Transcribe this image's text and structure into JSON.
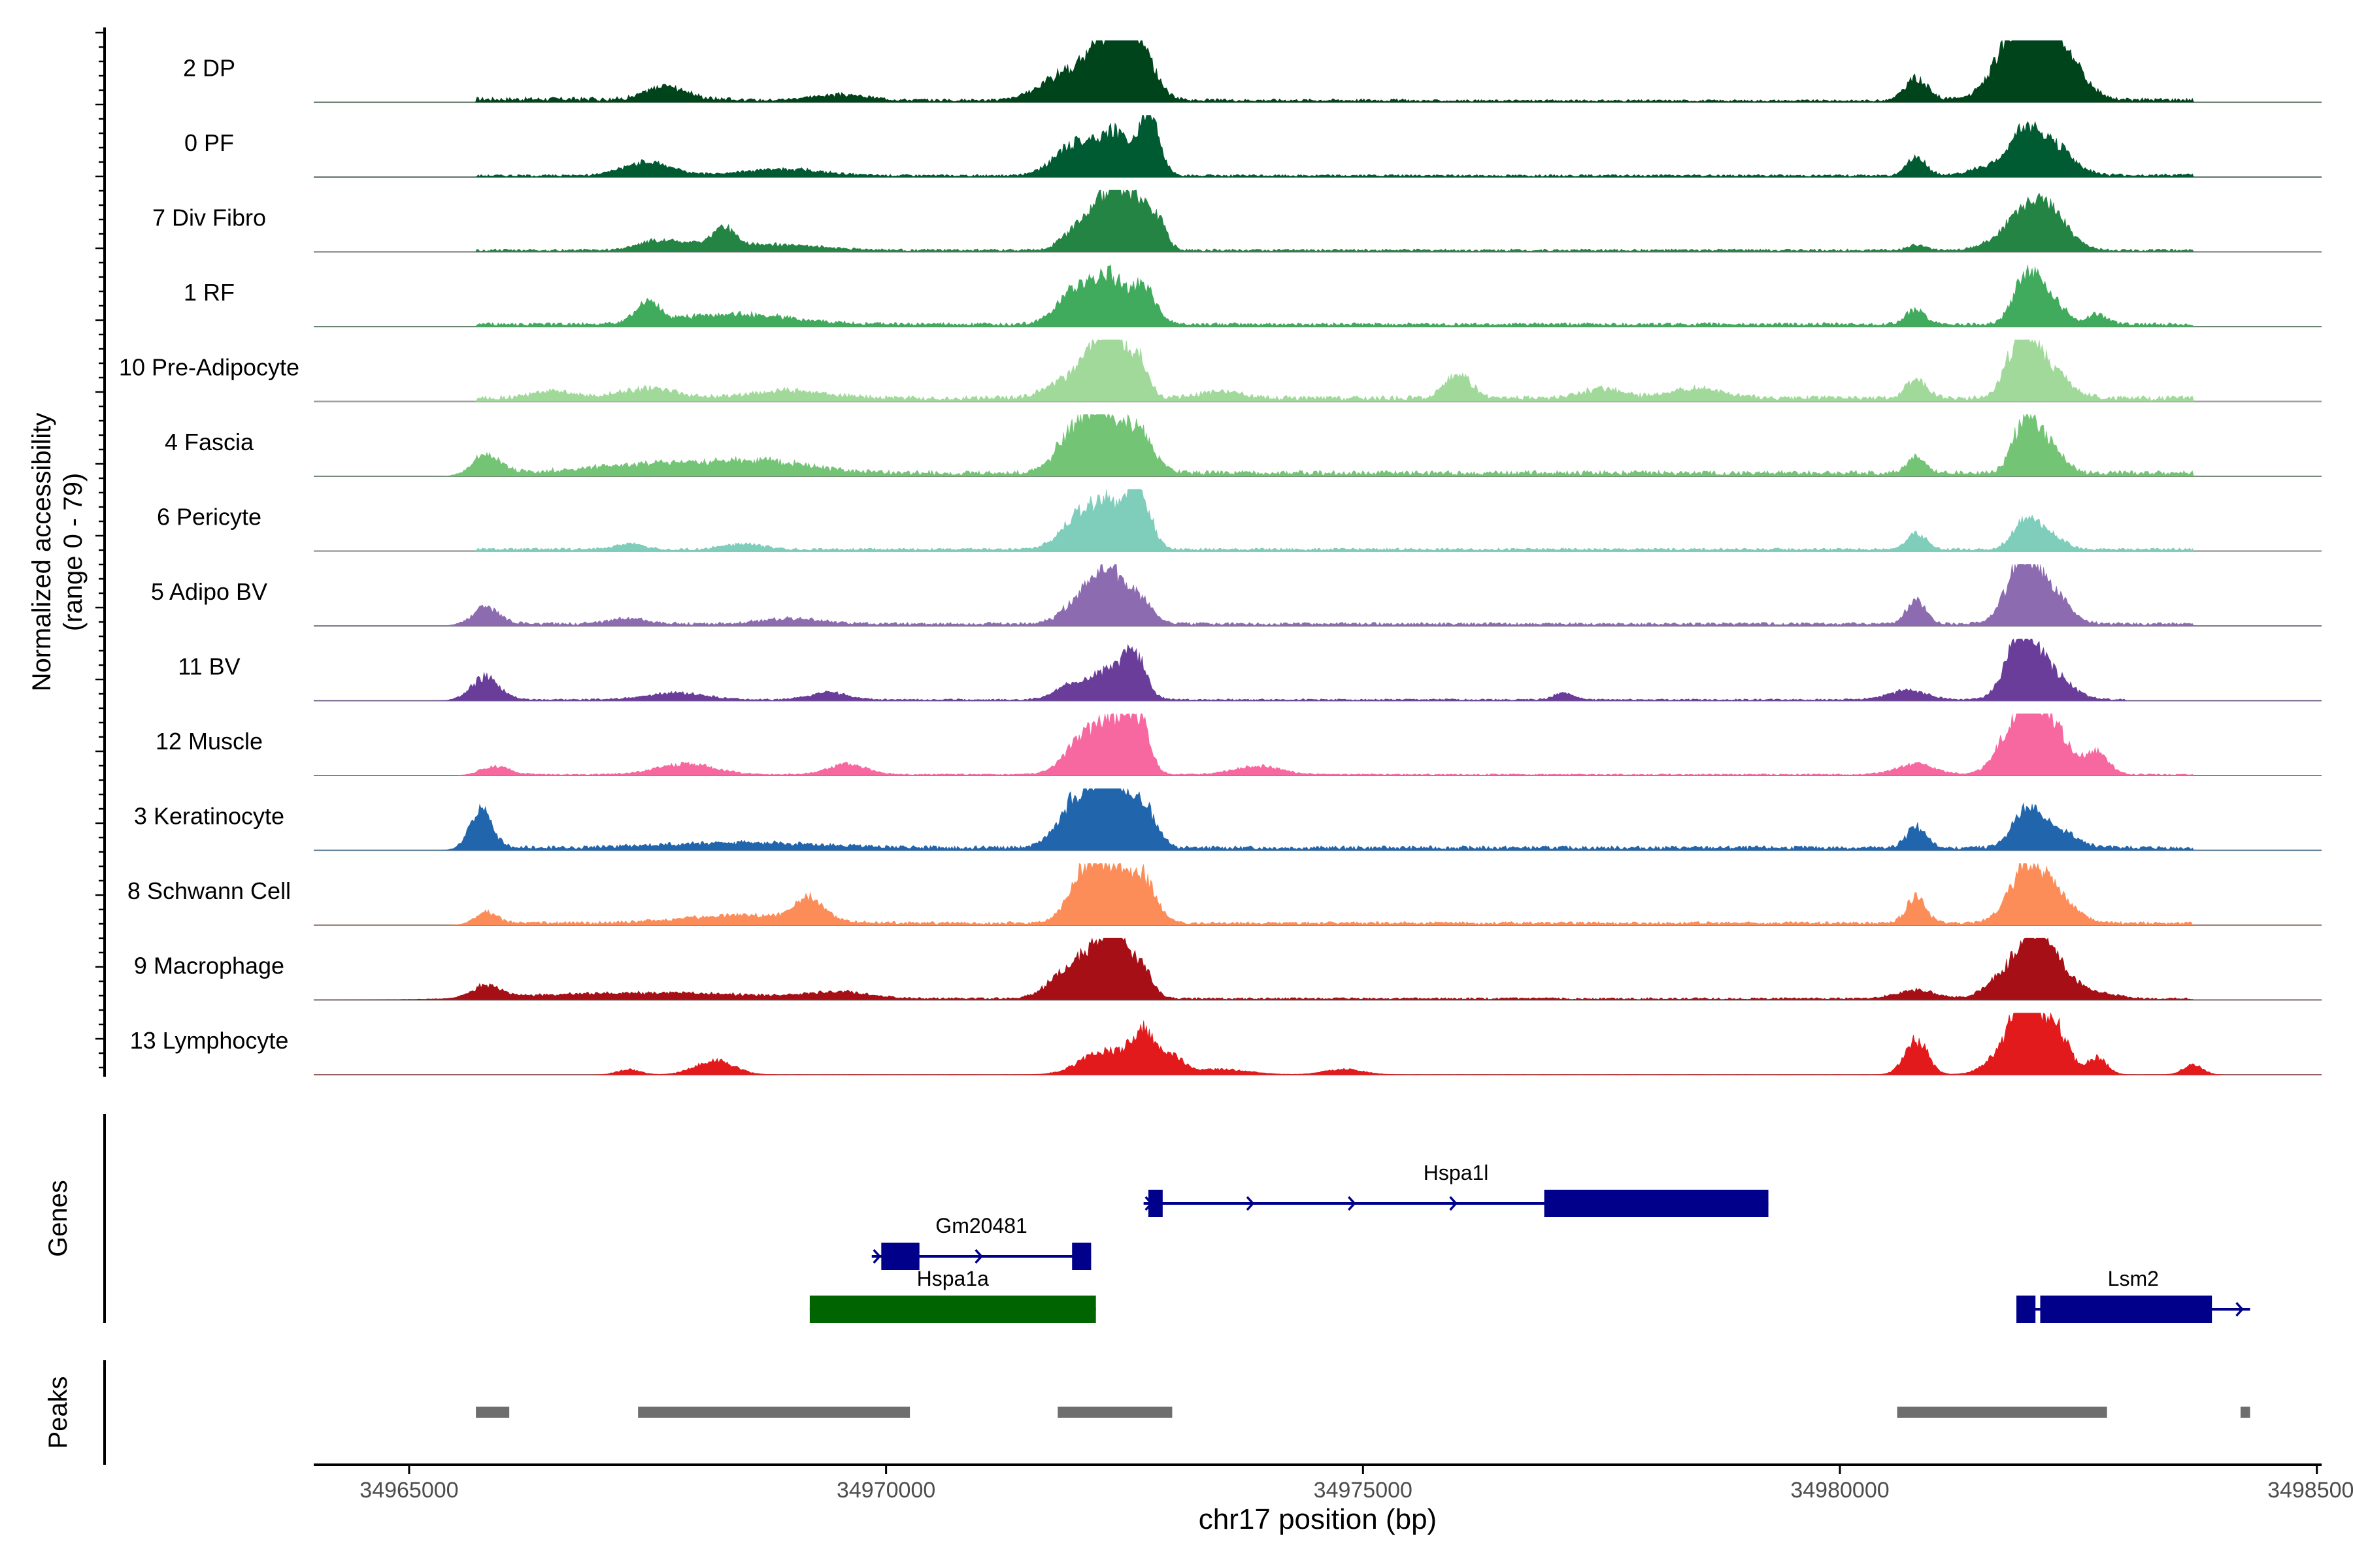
{
  "chart_data": {
    "type": "area",
    "title": "",
    "ylabel_line1": "Normalized accessibility",
    "ylabel_line2": "(range 0 - 79)",
    "xlabel": "chr17 position (bp)",
    "xlim": [
      34964000,
      34985050
    ],
    "xticks": [
      34965000,
      34970000,
      34975000,
      34980000,
      34985000
    ],
    "xtick_labels": [
      "34965000",
      "34970000",
      "34975000",
      "34980000",
      "34985000"
    ],
    "yrange": [
      0,
      79
    ],
    "panel_labels": {
      "genes": "Genes",
      "peaks": "Peaks"
    },
    "series": [
      {
        "name": "2 DP",
        "color": "#00441b",
        "max": 22,
        "background": [
          [
            34965700,
            34968400,
            1.2
          ],
          [
            34968400,
            34975500,
            0.8
          ],
          [
            34975500,
            34980700,
            0.6
          ],
          [
            34980700,
            34983700,
            1.0
          ]
        ],
        "peaks": [
          [
            34967700,
            200,
            5
          ],
          [
            34969500,
            300,
            2
          ],
          [
            34971900,
            260,
            10
          ],
          [
            34972300,
            180,
            16
          ],
          [
            34972500,
            160,
            14
          ],
          [
            34972700,
            150,
            13
          ],
          [
            34980800,
            120,
            8
          ],
          [
            34981900,
            240,
            22
          ],
          [
            34982100,
            250,
            16
          ],
          [
            34982400,
            200,
            8
          ]
        ]
      },
      {
        "name": "0 PF",
        "color": "#005a32",
        "max": 26,
        "background": [
          [
            34965700,
            34980700,
            0.7
          ],
          [
            34980700,
            34983700,
            0.9
          ]
        ],
        "peaks": [
          [
            34967500,
            250,
            6
          ],
          [
            34968900,
            400,
            3
          ],
          [
            34972000,
            220,
            14
          ],
          [
            34972400,
            150,
            17
          ],
          [
            34972750,
            110,
            26
          ],
          [
            34980800,
            100,
            8
          ],
          [
            34981600,
            200,
            4
          ],
          [
            34981950,
            160,
            17
          ],
          [
            34982250,
            200,
            12
          ]
        ]
      },
      {
        "name": "7 Div Fibro",
        "color": "#238443",
        "max": 40,
        "background": [
          [
            34965700,
            34983700,
            1.2
          ]
        ],
        "peaks": [
          [
            34967600,
            200,
            6
          ],
          [
            34968000,
            200,
            3
          ],
          [
            34968300,
            120,
            12
          ],
          [
            34968800,
            500,
            4
          ],
          [
            34972000,
            150,
            15
          ],
          [
            34972250,
            110,
            28
          ],
          [
            34972450,
            100,
            36
          ],
          [
            34972650,
            100,
            31
          ],
          [
            34972850,
            90,
            20
          ],
          [
            34980800,
            100,
            3
          ],
          [
            34981950,
            250,
            22
          ],
          [
            34982200,
            200,
            18
          ]
        ]
      },
      {
        "name": "1 RF",
        "color": "#41ab5d",
        "max": 24,
        "background": [
          [
            34965700,
            34983700,
            1.0
          ]
        ],
        "peaks": [
          [
            34967500,
            120,
            8
          ],
          [
            34968400,
            600,
            4
          ],
          [
            34972000,
            200,
            14
          ],
          [
            34972350,
            150,
            17
          ],
          [
            34972700,
            130,
            15
          ],
          [
            34980800,
            100,
            6
          ],
          [
            34981950,
            130,
            20
          ],
          [
            34982200,
            150,
            10
          ],
          [
            34982700,
            100,
            4
          ]
        ]
      },
      {
        "name": "10 Pre-Adipocyte",
        "color": "#a1d99b",
        "max": 25,
        "background": [
          [
            34965700,
            34983700,
            1.5
          ]
        ],
        "peaks": [
          [
            34966500,
            200,
            3
          ],
          [
            34967500,
            300,
            4
          ],
          [
            34969000,
            400,
            3
          ],
          [
            34971900,
            200,
            8
          ],
          [
            34972200,
            140,
            18
          ],
          [
            34972400,
            110,
            24
          ],
          [
            34972650,
            100,
            16
          ],
          [
            34973500,
            200,
            3
          ],
          [
            34976000,
            130,
            10
          ],
          [
            34977500,
            200,
            4
          ],
          [
            34978500,
            300,
            4
          ],
          [
            34980800,
            110,
            8
          ],
          [
            34981900,
            150,
            24
          ],
          [
            34982200,
            200,
            12
          ]
        ]
      },
      {
        "name": "4 Fascia",
        "color": "#74c476",
        "max": 20,
        "background": [
          [
            34965700,
            34983700,
            1.2
          ]
        ],
        "peaks": [
          [
            34965800,
            150,
            6
          ],
          [
            34967500,
            600,
            3
          ],
          [
            34968700,
            500,
            4
          ],
          [
            34972000,
            200,
            14
          ],
          [
            34972300,
            180,
            16
          ],
          [
            34972650,
            150,
            13
          ],
          [
            34980800,
            100,
            5
          ],
          [
            34981950,
            130,
            18
          ],
          [
            34982200,
            150,
            8
          ]
        ]
      },
      {
        "name": "6 Pericyte",
        "color": "#7fcdbb",
        "max": 32,
        "background": [
          [
            34965700,
            34983700,
            1.0
          ]
        ],
        "peaks": [
          [
            34967300,
            150,
            3
          ],
          [
            34968500,
            200,
            3
          ],
          [
            34972050,
            200,
            18
          ],
          [
            34972350,
            160,
            20
          ],
          [
            34972650,
            120,
            32
          ],
          [
            34980800,
            100,
            9
          ],
          [
            34981950,
            130,
            16
          ],
          [
            34982200,
            150,
            7
          ]
        ]
      },
      {
        "name": "5 Adipo BV",
        "color": "#8c6bb1",
        "max": 22,
        "background": [
          [
            34965700,
            34983700,
            0.8
          ]
        ],
        "peaks": [
          [
            34965800,
            150,
            6
          ],
          [
            34967300,
            200,
            2
          ],
          [
            34969000,
            300,
            2
          ],
          [
            34972100,
            200,
            11
          ],
          [
            34972350,
            150,
            16
          ],
          [
            34972650,
            130,
            9
          ],
          [
            34980800,
            100,
            9
          ],
          [
            34981900,
            160,
            22
          ],
          [
            34982200,
            180,
            12
          ]
        ]
      },
      {
        "name": "11 BV",
        "color": "#6a3d9a",
        "max": 26,
        "background": [
          [
            34965700,
            34983000,
            0.5
          ]
        ],
        "peaks": [
          [
            34965800,
            150,
            10
          ],
          [
            34967800,
            300,
            3
          ],
          [
            34969400,
            200,
            3
          ],
          [
            34971900,
            150,
            5
          ],
          [
            34972300,
            200,
            12
          ],
          [
            34972600,
            120,
            18
          ],
          [
            34977100,
            100,
            3
          ],
          [
            34980700,
            200,
            4
          ],
          [
            34981900,
            160,
            26
          ],
          [
            34982200,
            200,
            12
          ]
        ]
      },
      {
        "name": "12 Muscle",
        "color": "#f768a1",
        "max": 22,
        "background": [
          [
            34965700,
            34983700,
            0.4
          ]
        ],
        "peaks": [
          [
            34965900,
            150,
            3
          ],
          [
            34967900,
            300,
            4
          ],
          [
            34969600,
            200,
            4
          ],
          [
            34972100,
            200,
            14
          ],
          [
            34972400,
            150,
            16
          ],
          [
            34972650,
            110,
            19
          ],
          [
            34973900,
            250,
            3
          ],
          [
            34980800,
            200,
            4
          ],
          [
            34981900,
            200,
            21
          ],
          [
            34982200,
            200,
            16
          ],
          [
            34982700,
            120,
            8
          ]
        ]
      },
      {
        "name": "3 Keratinocyte",
        "color": "#2166ac",
        "max": 22,
        "background": [
          [
            34965700,
            34983700,
            1.0
          ]
        ],
        "peaks": [
          [
            34965750,
            120,
            14
          ],
          [
            34968500,
            800,
            2
          ],
          [
            34972100,
            230,
            22
          ],
          [
            34972400,
            150,
            17
          ],
          [
            34972700,
            130,
            15
          ],
          [
            34980800,
            100,
            8
          ],
          [
            34981950,
            140,
            13
          ],
          [
            34982250,
            200,
            7
          ]
        ]
      },
      {
        "name": "8 Schwann Cell",
        "color": "#fc8d59",
        "max": 22,
        "background": [
          [
            34965700,
            34983700,
            0.8
          ]
        ],
        "peaks": [
          [
            34965800,
            120,
            4
          ],
          [
            34968500,
            600,
            3
          ],
          [
            34969200,
            150,
            8
          ],
          [
            34972100,
            170,
            20
          ],
          [
            34972400,
            150,
            17
          ],
          [
            34972700,
            130,
            16
          ],
          [
            34980800,
            100,
            10
          ],
          [
            34981950,
            180,
            19
          ],
          [
            34982250,
            200,
            10
          ]
        ]
      },
      {
        "name": "9 Macrophage",
        "color": "#a50f15",
        "max": 42,
        "background": [
          [
            34965700,
            34983700,
            1.0
          ]
        ],
        "peaks": [
          [
            34965800,
            150,
            8
          ],
          [
            34967500,
            1200,
            4
          ],
          [
            34969500,
            300,
            4
          ],
          [
            34971900,
            200,
            18
          ],
          [
            34972200,
            150,
            28
          ],
          [
            34972400,
            100,
            42
          ],
          [
            34972650,
            120,
            25
          ],
          [
            34980800,
            200,
            6
          ],
          [
            34981800,
            200,
            22
          ],
          [
            34982050,
            140,
            36
          ],
          [
            34982300,
            160,
            20
          ],
          [
            34982700,
            200,
            4
          ]
        ]
      },
      {
        "name": "13 Lymphocyte",
        "color": "#e31a1c",
        "max": 34,
        "background": [
          [
            34967200,
            34983800,
            0.1
          ]
        ],
        "peaks": [
          [
            34967300,
            120,
            3
          ],
          [
            34968200,
            200,
            8
          ],
          [
            34972300,
            250,
            14
          ],
          [
            34972700,
            120,
            22
          ],
          [
            34973000,
            120,
            10
          ],
          [
            34973500,
            300,
            3
          ],
          [
            34974800,
            200,
            3
          ],
          [
            34980800,
            120,
            20
          ],
          [
            34981800,
            200,
            18
          ],
          [
            34981950,
            120,
            34
          ],
          [
            34982250,
            140,
            28
          ],
          [
            34982700,
            100,
            10
          ],
          [
            34983700,
            100,
            6
          ]
        ]
      }
    ],
    "genes": [
      {
        "name": "Hspa1l",
        "strand": "+",
        "color": "#00008b",
        "row": 0,
        "start": 34972700,
        "end": 34979250,
        "exons": [
          [
            34972750,
            34972900
          ],
          [
            34976900,
            34979250
          ]
        ]
      },
      {
        "name": "Gm20481",
        "strand": "+",
        "color": "#00008b",
        "row": 1,
        "start": 34969850,
        "end": 34972150,
        "exons": [
          [
            34969950,
            34970350
          ],
          [
            34971950,
            34972150
          ]
        ]
      },
      {
        "name": "Hspa1a",
        "strand": "+",
        "color": "#006400",
        "row": 2,
        "start": 34969200,
        "end": 34972200,
        "exons": [
          [
            34969200,
            34972200
          ]
        ]
      },
      {
        "name": "Lsm2",
        "strand": "+",
        "color": "#00008b",
        "row": 2,
        "start": 34981850,
        "end": 34984300,
        "exons": [
          [
            34981850,
            34982050
          ],
          [
            34982100,
            34983900
          ]
        ]
      }
    ],
    "peaks": [
      [
        34965700,
        34966050
      ],
      [
        34967400,
        34970250
      ],
      [
        34971800,
        34973000
      ],
      [
        34980600,
        34982800
      ],
      [
        34984200,
        34984300
      ]
    ]
  }
}
